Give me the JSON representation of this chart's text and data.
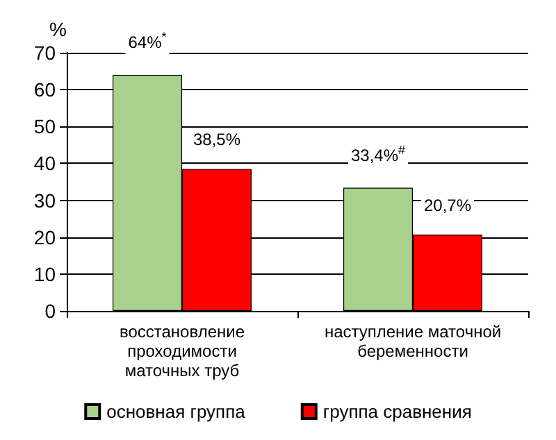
{
  "chart_data": {
    "type": "bar",
    "ylabel": "%",
    "categories": [
      "восстановление проходимости маточных труб",
      "наступление маточной беременности"
    ],
    "series": [
      {
        "name": "основная группа",
        "color": "#a9d18e",
        "values": [
          64,
          33.4
        ],
        "value_labels": [
          "64%$^{*}$",
          "33,4%$^{#}$"
        ]
      },
      {
        "name": "группа сравнения",
        "color": "#ff0000",
        "values": [
          38.5,
          20.7
        ],
        "value_labels": [
          "38,5%",
          "20,7%"
        ]
      }
    ],
    "ylim": [
      0,
      70
    ],
    "yticks": [
      0,
      10,
      20,
      30,
      40,
      50,
      60,
      70
    ],
    "grid": "y",
    "legend": "bottom"
  }
}
